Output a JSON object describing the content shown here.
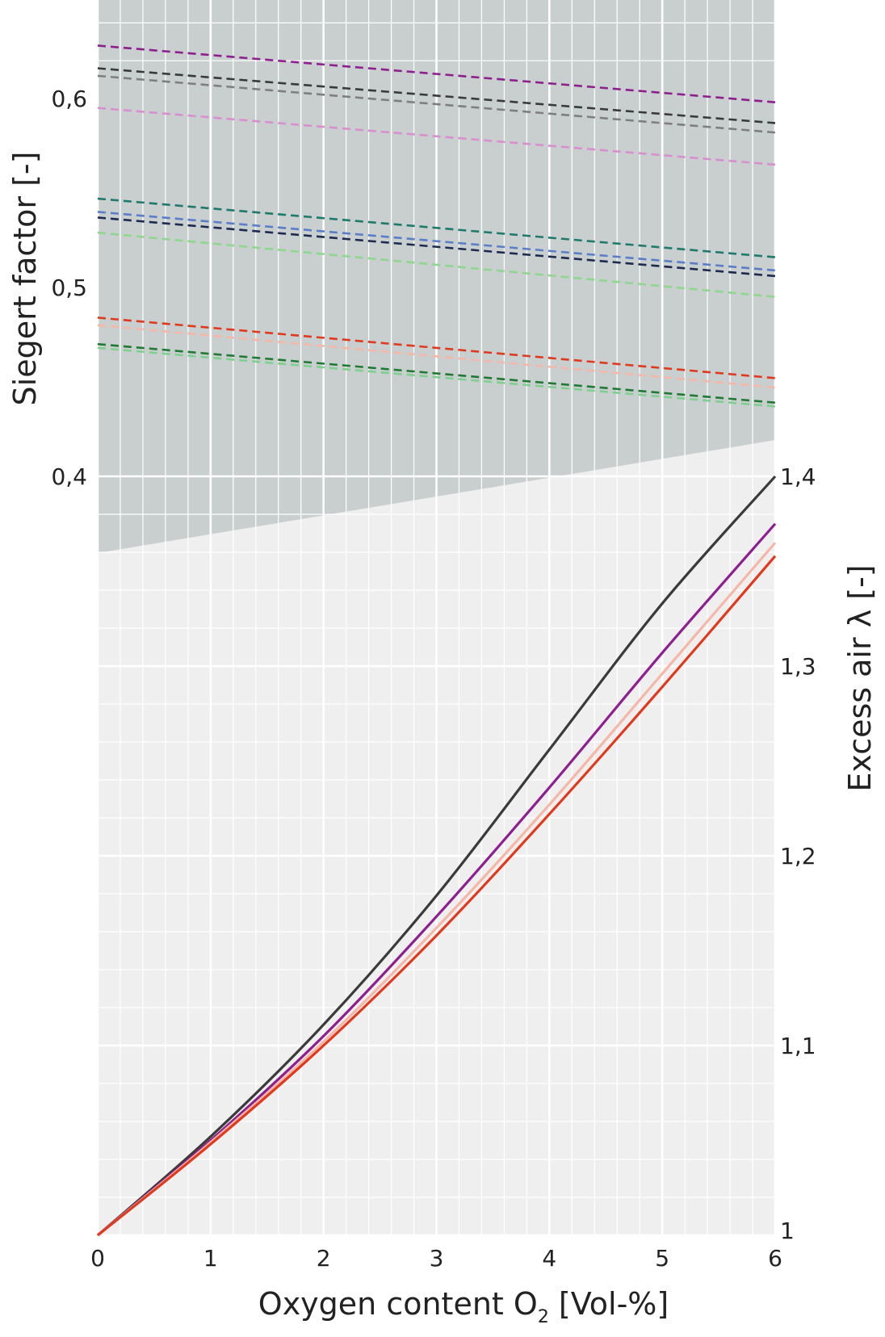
{
  "chart_data": {
    "type": "line",
    "xlabel_main": "Oxygen content O",
    "xlabel_sub": "2",
    "xlabel_unit": " [Vol-%]",
    "ylabel_left": "Siegert factor [-]",
    "ylabel_right": "Excess air λ [-]",
    "xlim": [
      0,
      6
    ],
    "ylim_left": [
      0.4,
      0.6
    ],
    "ylim_right": [
      1.0,
      1.4
    ],
    "x_ticks": [
      {
        "value": 0,
        "label": "0"
      },
      {
        "value": 1,
        "label": "1"
      },
      {
        "value": 2,
        "label": "2"
      },
      {
        "value": 3,
        "label": "3"
      },
      {
        "value": 4,
        "label": "4"
      },
      {
        "value": 5,
        "label": "5"
      },
      {
        "value": 6,
        "label": "6"
      }
    ],
    "y_left_ticks": [
      {
        "value": 0.4,
        "label": "0,4"
      },
      {
        "value": 0.5,
        "label": "0,5"
      },
      {
        "value": 0.6,
        "label": "0,6"
      }
    ],
    "y_right_ticks": [
      {
        "value": 1.0,
        "label": "1"
      },
      {
        "value": 1.1,
        "label": "1,1"
      },
      {
        "value": 1.2,
        "label": "1,2"
      },
      {
        "value": 1.3,
        "label": "1,3"
      },
      {
        "value": 1.4,
        "label": "1,4"
      }
    ],
    "grid": true,
    "siegert_series": [
      {
        "color": "#8e1f8e",
        "x": [
          0,
          6
        ],
        "y": [
          0.628,
          0.598
        ]
      },
      {
        "color": "#3a3a3a",
        "x": [
          0,
          6
        ],
        "y": [
          0.616,
          0.587
        ]
      },
      {
        "color": "#7f7f7f",
        "x": [
          0,
          6
        ],
        "y": [
          0.612,
          0.582
        ]
      },
      {
        "color": "#d98fcf",
        "x": [
          0,
          6
        ],
        "y": [
          0.595,
          0.565
        ]
      },
      {
        "color": "#1f7a6e",
        "x": [
          0,
          6
        ],
        "y": [
          0.547,
          0.516
        ]
      },
      {
        "color": "#5b7ec9",
        "x": [
          0,
          6
        ],
        "y": [
          0.54,
          0.509
        ]
      },
      {
        "color": "#1e2a4f",
        "x": [
          0,
          6
        ],
        "y": [
          0.537,
          0.506
        ]
      },
      {
        "color": "#8fd68f",
        "x": [
          0,
          6
        ],
        "y": [
          0.529,
          0.495
        ]
      },
      {
        "color": "#e03a1e",
        "x": [
          0,
          6
        ],
        "y": [
          0.484,
          0.452
        ]
      },
      {
        "color": "#f4b7a8",
        "x": [
          0,
          6
        ],
        "y": [
          0.48,
          0.447
        ]
      },
      {
        "color": "#1f7a33",
        "x": [
          0,
          6
        ],
        "y": [
          0.47,
          0.439
        ]
      },
      {
        "color": "#7fcf8f",
        "x": [
          0,
          6
        ],
        "y": [
          0.468,
          0.437
        ]
      }
    ],
    "lambda_series": [
      {
        "color": "#3a3a3a",
        "x": [
          0,
          1,
          2,
          3,
          4,
          5,
          6
        ],
        "y": [
          1.0,
          1.052,
          1.111,
          1.179,
          1.256,
          1.333,
          1.4
        ]
      },
      {
        "color": "#8e1f8e",
        "x": [
          0,
          1,
          2,
          3,
          4,
          5,
          6
        ],
        "y": [
          1.0,
          1.05,
          1.105,
          1.168,
          1.236,
          1.307,
          1.375
        ]
      },
      {
        "color": "#f4b7a8",
        "x": [
          0,
          1,
          2,
          3,
          4,
          5,
          6
        ],
        "y": [
          1.0,
          1.049,
          1.102,
          1.162,
          1.227,
          1.296,
          1.365
        ]
      },
      {
        "color": "#e03a1e",
        "x": [
          0,
          1,
          2,
          3,
          4,
          5,
          6
        ],
        "y": [
          1.0,
          1.048,
          1.1,
          1.158,
          1.222,
          1.289,
          1.358
        ]
      }
    ],
    "colors": {
      "upper_region": "#c9cfcf",
      "lower_region": "#efefef",
      "grid": "#ffffff",
      "text": "#222222"
    }
  }
}
